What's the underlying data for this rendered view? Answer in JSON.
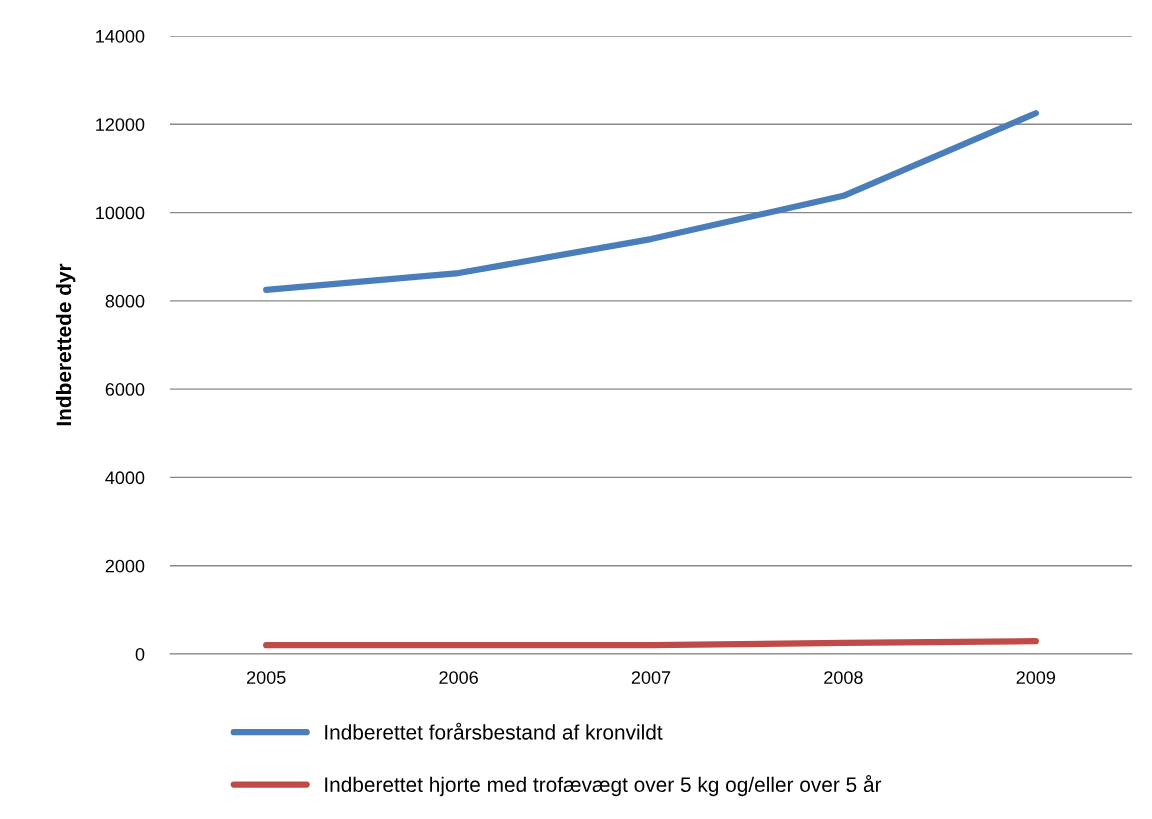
{
  "chart_data": {
    "type": "line",
    "ylabel": "Indberettede dyr",
    "categories": [
      "2005",
      "2006",
      "2007",
      "2008",
      "2009"
    ],
    "series": [
      {
        "name": "Indberettet forårsbestand af kronvildt",
        "color": "#4a7ebb",
        "values": [
          8250,
          8630,
          9400,
          10380,
          12250
        ]
      },
      {
        "name": "Indberettet hjorte med trofævægt over 5 kg og/eller over 5 år",
        "color": "#be4b48",
        "values": [
          200,
          200,
          200,
          250,
          290
        ]
      }
    ],
    "ylim": [
      0,
      14000
    ],
    "yticks": [
      0,
      2000,
      4000,
      6000,
      8000,
      10000,
      12000,
      14000
    ],
    "grid": "y",
    "legend": "bottom",
    "marker": "none",
    "line_style": "solid"
  }
}
